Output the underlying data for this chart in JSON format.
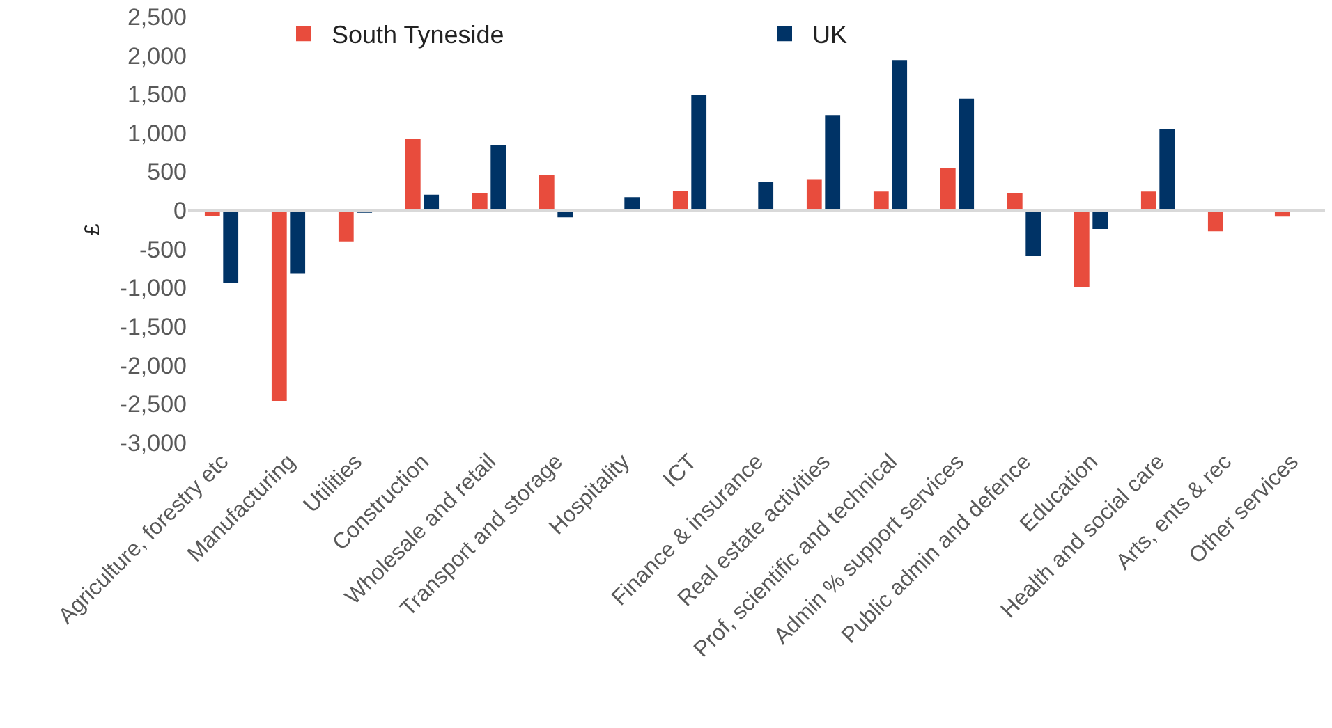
{
  "chart_data": {
    "type": "bar",
    "ylabel": "£",
    "categories": [
      "Agriculture, forestry etc",
      "Manufacturing",
      "Utilities",
      "Construction",
      "Wholesale and retail",
      "Transport and storage",
      "Hospitality",
      "ICT",
      "Finance & insurance",
      "Real estate activities",
      "Prof, scientific and technical",
      "Admin % support services",
      "Public admin and defence",
      "Education",
      "Health and social care",
      "Arts, ents & rec",
      "Other services"
    ],
    "series": [
      {
        "name": "South Tyneside",
        "color": "#e84c3d",
        "values": [
          -80,
          -2470,
          -410,
          930,
          230,
          460,
          null,
          260,
          null,
          410,
          250,
          550,
          230,
          -1000,
          250,
          -280,
          -90
        ]
      },
      {
        "name": "UK",
        "color": "#003366",
        "values": [
          -950,
          -820,
          -40,
          210,
          850,
          -100,
          180,
          1500,
          380,
          1240,
          1950,
          1450,
          -600,
          -250,
          1060,
          null,
          null
        ]
      }
    ],
    "ylim": [
      -3000,
      2500
    ],
    "yticks": [
      {
        "value": -3000,
        "label": "-3,000"
      },
      {
        "value": -2500,
        "label": "-2,500"
      },
      {
        "value": -2000,
        "label": "-2,000"
      },
      {
        "value": -1500,
        "label": "-1,500"
      },
      {
        "value": -1000,
        "label": "-1,000"
      },
      {
        "value": -500,
        "label": "-500"
      },
      0,
      500,
      {
        "value": 1000,
        "label": "1,000"
      },
      {
        "value": 1500,
        "label": "1,500"
      },
      {
        "value": 2000,
        "label": "2,000"
      },
      {
        "value": 2500,
        "label": "2,500"
      }
    ],
    "legend": "top"
  }
}
